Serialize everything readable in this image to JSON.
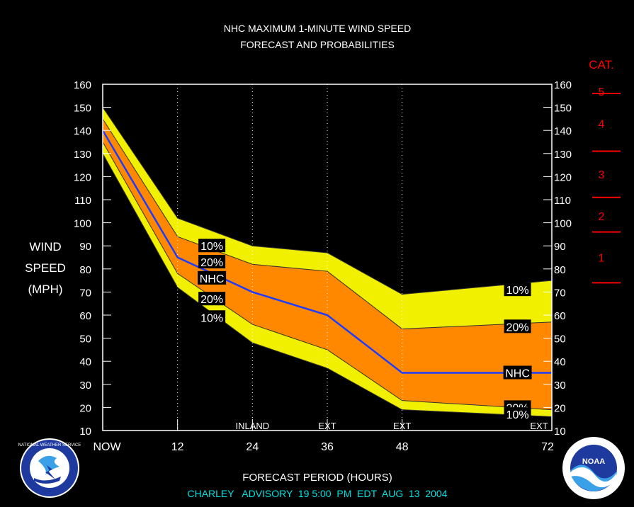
{
  "chart_data": {
    "type": "area",
    "title": "NHC MAXIMUM 1-MINUTE WIND SPEED",
    "subtitle": "FORECAST AND PROBABILITIES",
    "ylabel": [
      "WIND",
      "SPEED",
      "(MPH)"
    ],
    "xlabel": "FORECAST PERIOD (HOURS)",
    "footer": "CHARLEY   ADVISORY  19 5:00  PM  EDT  AUG  13  2004",
    "ylim": [
      10,
      160
    ],
    "yticks": [
      10,
      20,
      30,
      40,
      50,
      60,
      70,
      80,
      90,
      100,
      110,
      120,
      130,
      140,
      150,
      160
    ],
    "xlim": [
      0,
      72
    ],
    "xticks": [
      {
        "x": 0,
        "label": "NOW"
      },
      {
        "x": 12,
        "label": "12"
      },
      {
        "x": 24,
        "label": "24"
      },
      {
        "x": 36,
        "label": "36"
      },
      {
        "x": 48,
        "label": "48"
      },
      {
        "x": 72,
        "label": "72"
      }
    ],
    "period_notes": [
      {
        "x": 24,
        "label": "INLAND"
      },
      {
        "x": 36,
        "label": "EXT"
      },
      {
        "x": 48,
        "label": "EXT"
      },
      {
        "x": 72,
        "label": "EXT"
      }
    ],
    "gridlines_x": [
      12,
      24,
      36,
      48
    ],
    "x": [
      0,
      12,
      24,
      36,
      48,
      72
    ],
    "series": [
      {
        "name": "NHC",
        "values": [
          140,
          85,
          70,
          60,
          35,
          35
        ],
        "color": "#1e3cff"
      },
      {
        "name": "20%",
        "band": "upper",
        "values": [
          145,
          94,
          82,
          79,
          54,
          57
        ],
        "color": "#ff8800"
      },
      {
        "name": "20%",
        "band": "lower",
        "values": [
          135,
          78,
          56,
          45,
          23,
          19
        ],
        "color": "#ff8800"
      },
      {
        "name": "10%",
        "band": "upper",
        "values": [
          150,
          102,
          90,
          87,
          69,
          75
        ],
        "color": "#f0f000"
      },
      {
        "name": "10%",
        "band": "lower",
        "values": [
          130,
          72,
          48,
          37,
          19,
          16
        ],
        "color": "#f0f000"
      }
    ],
    "band_labels": [
      {
        "text": "10%",
        "x": 17.5,
        "y": 90
      },
      {
        "text": "20%",
        "x": 17.5,
        "y": 83
      },
      {
        "text": "NHC",
        "x": 17.5,
        "y": 76
      },
      {
        "text": "20%",
        "x": 17.5,
        "y": 67
      },
      {
        "text": "10%",
        "x": 17.5,
        "y": 59
      },
      {
        "text": "10%",
        "x": 66.5,
        "y": 71
      },
      {
        "text": "20%",
        "x": 66.5,
        "y": 55
      },
      {
        "text": "NHC",
        "x": 66.5,
        "y": 35
      },
      {
        "text": "20%",
        "x": 66.5,
        "y": 20
      },
      {
        "text": "10%",
        "x": 66.5,
        "y": 17
      }
    ],
    "category_scale": {
      "title": "CAT.",
      "thresholds": [
        74,
        96,
        111,
        131,
        156
      ],
      "labels": [
        {
          "text": "1",
          "y": 85
        },
        {
          "text": "2",
          "y": 103
        },
        {
          "text": "3",
          "y": 121
        },
        {
          "text": "4",
          "y": 143
        },
        {
          "text": "5",
          "y": 157
        }
      ],
      "color": "#ff0000"
    },
    "colors": {
      "background": "#000000",
      "text": "#ffffff",
      "footer": "#00e0e0",
      "band_10": "#f0f000",
      "band_20": "#ff8800",
      "nhc_line": "#1e3cff",
      "category": "#ff0000"
    },
    "grid": "dotted vertical",
    "legend": "inline labels"
  },
  "logos": {
    "nws": "NATIONAL WEATHER SERVICE",
    "noaa": "NOAA"
  }
}
